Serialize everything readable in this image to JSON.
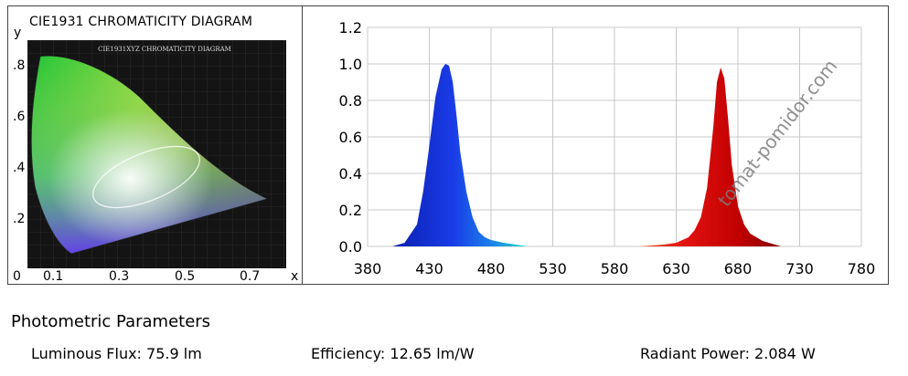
{
  "cie": {
    "title": "CIE1931 CHROMATICITY DIAGRAM",
    "inner_title": "CIE1931XYZ CHROMATICITY DIAGRAM",
    "y_label": "y",
    "x_label": "x",
    "y_ticks": [
      ".8",
      ".6",
      ".4",
      ".2"
    ],
    "x_ticks": [
      "0",
      "0.1",
      "0.3",
      "0.5",
      "0.7"
    ]
  },
  "chart_data": {
    "type": "area",
    "title": "",
    "xlabel": "",
    "ylabel": "",
    "xlim": [
      380,
      780
    ],
    "ylim": [
      0,
      1.2
    ],
    "x_ticks": [
      380,
      430,
      480,
      530,
      580,
      630,
      680,
      730,
      780
    ],
    "x_tick_labels": [
      "380",
      "430",
      "480",
      "530",
      "580",
      "630",
      "680",
      "730",
      "780"
    ],
    "y_ticks": [
      0.0,
      0.2,
      0.4,
      0.6,
      0.8,
      1.0,
      1.2
    ],
    "y_tick_labels": [
      "0.0",
      "0.2",
      "0.4",
      "0.6",
      "0.8",
      "1.0",
      "1.2"
    ],
    "grid": true,
    "series": [
      {
        "color": "#1030d0",
        "x": [
          400,
          410,
          420,
          425,
          430,
          435,
          440,
          443,
          446,
          449,
          452,
          455,
          460,
          465,
          470,
          475,
          480,
          490,
          500,
          510
        ],
        "y": [
          0.0,
          0.02,
          0.12,
          0.3,
          0.55,
          0.82,
          0.97,
          1.0,
          0.99,
          0.9,
          0.72,
          0.52,
          0.3,
          0.16,
          0.08,
          0.05,
          0.035,
          0.02,
          0.01,
          0.0
        ]
      },
      {
        "color": "#c00000",
        "x": [
          600,
          610,
          620,
          630,
          640,
          645,
          650,
          655,
          660,
          663,
          666,
          669,
          672,
          675,
          680,
          685,
          690,
          700,
          710,
          715
        ],
        "y": [
          0.0,
          0.005,
          0.01,
          0.02,
          0.05,
          0.09,
          0.16,
          0.32,
          0.65,
          0.9,
          0.98,
          0.92,
          0.7,
          0.45,
          0.22,
          0.12,
          0.07,
          0.03,
          0.01,
          0.0
        ]
      }
    ]
  },
  "params": {
    "heading": "Photometric Parameters",
    "luminous_flux": "Luminous Flux:  75.9 lm",
    "efficiency": "Efficiency: 12.65 lm/W",
    "radiant_power": "Radiant Power: 2.084 W"
  },
  "watermark": "tomat-pomidor.com"
}
